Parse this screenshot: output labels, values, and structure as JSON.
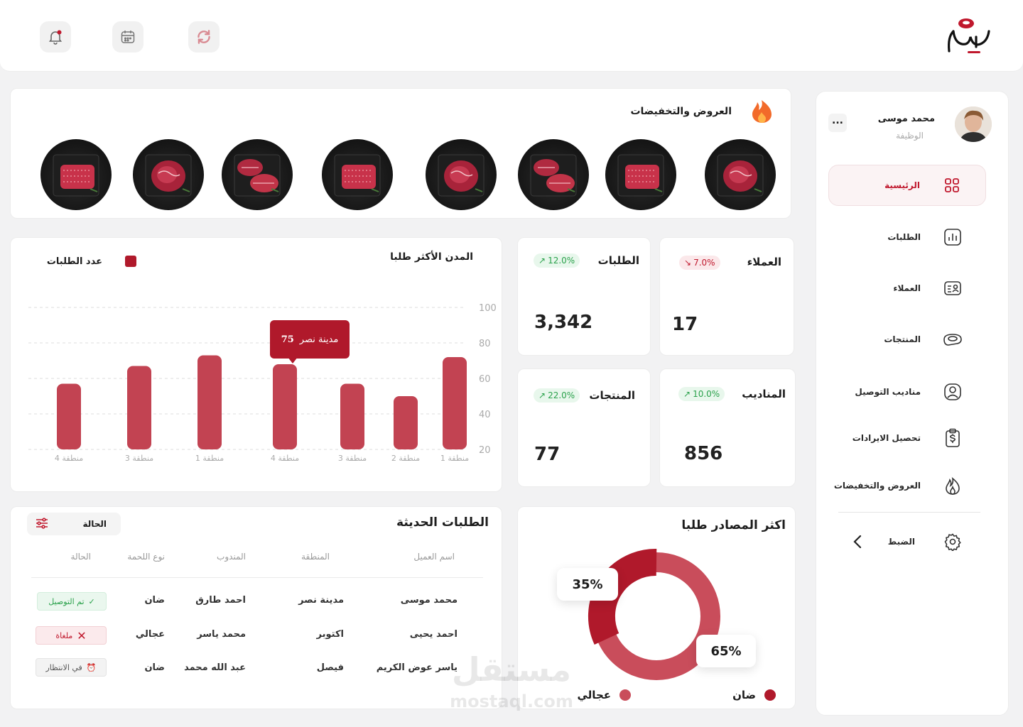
{
  "header": {
    "icons": [
      "notification-bell-icon",
      "calendar-icon",
      "refresh-icon"
    ],
    "logo_text": "لحمتنا"
  },
  "profile": {
    "name": "محمد موسى",
    "role": "الوظيفة",
    "more": "..."
  },
  "sidebar": {
    "items": [
      {
        "label": "الرئيسية",
        "icon": "grid-icon"
      },
      {
        "label": "الطلبات",
        "icon": "bar-chart-icon"
      },
      {
        "label": "العملاء",
        "icon": "id-card-icon"
      },
      {
        "label": "المنتجات",
        "icon": "meat-icon"
      },
      {
        "label": "مناديب التوصيل",
        "icon": "user-circle-icon"
      },
      {
        "label": "تحصيل الايرادات",
        "icon": "dollar-clipboard-icon"
      },
      {
        "label": "العروض والتخفيضات",
        "icon": "flame-icon"
      },
      {
        "label": "الضبط",
        "icon": "settings-icon"
      }
    ]
  },
  "offers": {
    "title": "العروض والتخفيضات"
  },
  "stats": {
    "customers": {
      "title": "العملاء",
      "value": "17",
      "change": "7.0%"
    },
    "orders": {
      "title": "الطلبات",
      "value": "3,342",
      "change": "12.0%"
    },
    "agents": {
      "title": "المناديب",
      "value": "856",
      "change": "10.0%"
    },
    "products": {
      "title": "المنتجات",
      "value": "77",
      "change": "22.0%"
    }
  },
  "city_chart": {
    "title": "المدن الأكثر طلبا",
    "legend": "عدد الطلبات",
    "tooltip_city": "مدينة نصر",
    "tooltip_value": "75"
  },
  "chart_data": {
    "type": "bar",
    "categories": [
      "منطقة 1",
      "منطقة 2",
      "منطقة 3",
      "منطقة 4",
      "منطقة 1",
      "منطقة 3",
      "منطقة 4"
    ],
    "values": [
      72,
      50,
      57,
      68,
      73,
      67,
      57
    ],
    "series": [
      {
        "name": "عدد الطلبات",
        "values": [
          72,
          50,
          57,
          68,
          73,
          67,
          57
        ]
      }
    ],
    "yticks": [
      "100",
      "80",
      "60",
      "40",
      "20"
    ],
    "ylim": [
      20,
      100
    ],
    "accent": "#c24352"
  },
  "recent_orders": {
    "title": "الطلبات الحديثة",
    "filter_label": "الحالة",
    "headers": [
      "اسم العميل",
      "المنطقة",
      "المندوب",
      "نوع اللحمة",
      "الحالة"
    ],
    "rows": [
      {
        "customer": "محمد موسى",
        "area": "مدينة نصر",
        "agent": "احمد طارق",
        "meat": "ضان",
        "status": "تم التوصيل"
      },
      {
        "customer": "احمد يحيى",
        "area": "اكتوبر",
        "agent": "محمد ياسر",
        "meat": "عجالي",
        "status": "ملغاة"
      },
      {
        "customer": "ياسر عوض الكريم",
        "area": "فيصل",
        "agent": "عبد الله محمد",
        "meat": "ضان",
        "status": "في الانتظار"
      }
    ]
  },
  "sources": {
    "title": "اكثر المصادر طلبا",
    "slices": [
      {
        "label": "ضان",
        "pct": "65%",
        "value": 65,
        "color": "#c94d5b"
      },
      {
        "label": "عجالي",
        "pct": "35%",
        "value": 35,
        "color": "#b0192b"
      }
    ]
  },
  "watermark": {
    "arabic": "مستقل",
    "latin": "mostaql.com"
  },
  "colors": {
    "accent": "#c0182d",
    "bar": "#c24352",
    "green": "#2aa14b"
  }
}
